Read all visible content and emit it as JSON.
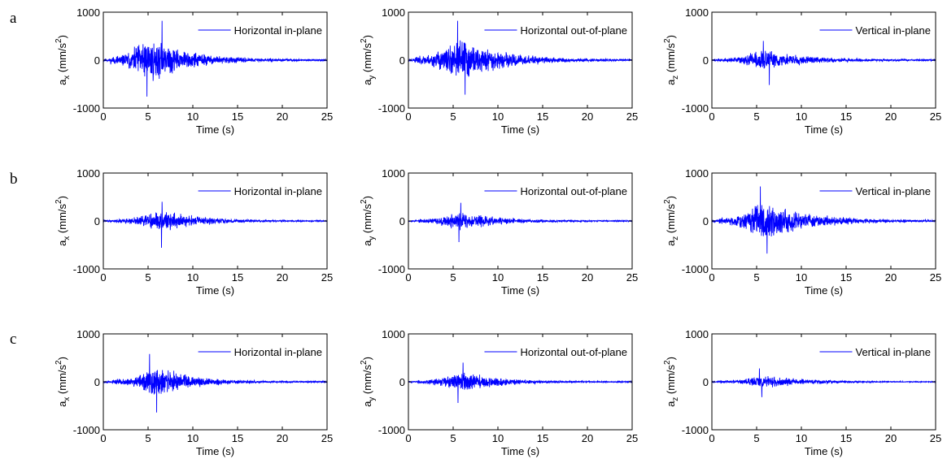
{
  "rows": [
    {
      "label": "a"
    },
    {
      "label": "b"
    },
    {
      "label": "c"
    }
  ],
  "chart_data": [
    {
      "type": "line",
      "row": 0,
      "col": 0,
      "ylabel_base": "a",
      "ylabel_sub": "x",
      "ylabel_unit": " (mm/s",
      "ylabel_exp": "2",
      "ylabel_close": ")",
      "xlabel": "Time (s)",
      "legend": "Horizontal in-plane",
      "xlim": [
        0,
        25
      ],
      "ylim": [
        -1000,
        1000
      ],
      "xticks": [
        0,
        5,
        10,
        15,
        20,
        25
      ],
      "yticks": [
        -1000,
        0,
        1000
      ],
      "envelope": {
        "start": 0.8,
        "peak": 5.0,
        "ramp": 2.0,
        "decay": 4.5,
        "amp": 460,
        "noise": 30,
        "max": 820,
        "min": -760
      },
      "color": "#0000ff",
      "seed": 11
    },
    {
      "type": "line",
      "row": 0,
      "col": 1,
      "ylabel_base": "a",
      "ylabel_sub": "y",
      "ylabel_unit": " (mm/s",
      "ylabel_exp": "2",
      "ylabel_close": ")",
      "xlabel": "Time (s)",
      "legend": "Horizontal out-of-plane",
      "xlim": [
        0,
        25
      ],
      "ylim": [
        -1000,
        1000
      ],
      "xticks": [
        0,
        5,
        10,
        15,
        20,
        25
      ],
      "yticks": [
        -1000,
        0,
        1000
      ],
      "envelope": {
        "start": 0.7,
        "peak": 5.5,
        "ramp": 2.0,
        "decay": 5.0,
        "amp": 420,
        "noise": 30,
        "max": 820,
        "min": -720
      },
      "color": "#0000ff",
      "seed": 23
    },
    {
      "type": "line",
      "row": 0,
      "col": 2,
      "ylabel_base": "a",
      "ylabel_sub": "z",
      "ylabel_unit": " (mm/s",
      "ylabel_exp": "2",
      "ylabel_close": ")",
      "xlabel": "Time (s)",
      "legend": "Vertical in-plane",
      "xlim": [
        0,
        25
      ],
      "ylim": [
        -1000,
        1000
      ],
      "xticks": [
        0,
        5,
        10,
        15,
        20,
        25
      ],
      "yticks": [
        -1000,
        0,
        1000
      ],
      "envelope": {
        "start": 1.0,
        "peak": 5.5,
        "ramp": 2.0,
        "decay": 5.0,
        "amp": 210,
        "noise": 25,
        "max": 400,
        "min": -520
      },
      "color": "#0000ff",
      "seed": 37
    },
    {
      "type": "line",
      "row": 1,
      "col": 0,
      "ylabel_base": "a",
      "ylabel_sub": "x",
      "ylabel_unit": " (mm/s",
      "ylabel_exp": "2",
      "ylabel_close": ")",
      "xlabel": "Time (s)",
      "legend": "Horizontal in-plane",
      "xlim": [
        0,
        25
      ],
      "ylim": [
        -1000,
        1000
      ],
      "xticks": [
        0,
        5,
        10,
        15,
        20,
        25
      ],
      "yticks": [
        -1000,
        0,
        1000
      ],
      "envelope": {
        "start": 1.0,
        "peak": 6.5,
        "ramp": 2.5,
        "decay": 4.5,
        "amp": 210,
        "noise": 20,
        "max": 400,
        "min": -560
      },
      "color": "#0000ff",
      "seed": 41
    },
    {
      "type": "line",
      "row": 1,
      "col": 1,
      "ylabel_base": "a",
      "ylabel_sub": "y",
      "ylabel_unit": " (mm/s",
      "ylabel_exp": "2",
      "ylabel_close": ")",
      "xlabel": "Time (s)",
      "legend": "Horizontal out-of-plane",
      "xlim": [
        0,
        25
      ],
      "ylim": [
        -1000,
        1000
      ],
      "xticks": [
        0,
        5,
        10,
        15,
        20,
        25
      ],
      "yticks": [
        -1000,
        0,
        1000
      ],
      "envelope": {
        "start": 1.0,
        "peak": 5.5,
        "ramp": 2.2,
        "decay": 4.5,
        "amp": 190,
        "noise": 20,
        "max": 380,
        "min": -440
      },
      "color": "#0000ff",
      "seed": 53
    },
    {
      "type": "line",
      "row": 1,
      "col": 2,
      "ylabel_base": "a",
      "ylabel_sub": "z",
      "ylabel_unit": " (mm/s",
      "ylabel_exp": "2",
      "ylabel_close": ")",
      "xlabel": "Time (s)",
      "legend": "Vertical in-plane",
      "xlim": [
        0,
        25
      ],
      "ylim": [
        -1000,
        1000
      ],
      "xticks": [
        0,
        5,
        10,
        15,
        20,
        25
      ],
      "yticks": [
        -1000,
        0,
        1000
      ],
      "envelope": {
        "start": 0.8,
        "peak": 5.5,
        "ramp": 2.0,
        "decay": 5.5,
        "amp": 360,
        "noise": 30,
        "max": 720,
        "min": -680
      },
      "color": "#0000ff",
      "seed": 67
    },
    {
      "type": "line",
      "row": 2,
      "col": 0,
      "ylabel_base": "a",
      "ylabel_sub": "x",
      "ylabel_unit": " (mm/s",
      "ylabel_exp": "2",
      "ylabel_close": ")",
      "xlabel": "Time (s)",
      "legend": "Horizontal in-plane",
      "xlim": [
        0,
        25
      ],
      "ylim": [
        -1000,
        1000
      ],
      "xticks": [
        0,
        5,
        10,
        15,
        20,
        25
      ],
      "yticks": [
        -1000,
        0,
        1000
      ],
      "envelope": {
        "start": 1.0,
        "peak": 6.0,
        "ramp": 2.2,
        "decay": 4.0,
        "amp": 300,
        "noise": 25,
        "max": 580,
        "min": -640
      },
      "color": "#0000ff",
      "seed": 79
    },
    {
      "type": "line",
      "row": 2,
      "col": 1,
      "ylabel_base": "a",
      "ylabel_sub": "y",
      "ylabel_unit": " (mm/s",
      "ylabel_exp": "2",
      "ylabel_close": ")",
      "xlabel": "Time (s)",
      "legend": "Horizontal out-of-plane",
      "xlim": [
        0,
        25
      ],
      "ylim": [
        -1000,
        1000
      ],
      "xticks": [
        0,
        5,
        10,
        15,
        20,
        25
      ],
      "yticks": [
        -1000,
        0,
        1000
      ],
      "envelope": {
        "start": 1.0,
        "peak": 6.0,
        "ramp": 2.3,
        "decay": 4.5,
        "amp": 200,
        "noise": 20,
        "max": 400,
        "min": -440
      },
      "color": "#0000ff",
      "seed": 83
    },
    {
      "type": "line",
      "row": 2,
      "col": 2,
      "ylabel_base": "a",
      "ylabel_sub": "z",
      "ylabel_unit": " (mm/s",
      "ylabel_exp": "2",
      "ylabel_close": ")",
      "xlabel": "Time (s)",
      "legend": "Vertical in-plane",
      "xlim": [
        0,
        25
      ],
      "ylim": [
        -1000,
        1000
      ],
      "xticks": [
        0,
        5,
        10,
        15,
        20,
        25
      ],
      "yticks": [
        -1000,
        0,
        1000
      ],
      "envelope": {
        "start": 1.0,
        "peak": 5.5,
        "ramp": 2.0,
        "decay": 5.0,
        "amp": 130,
        "noise": 15,
        "max": 280,
        "min": -320
      },
      "color": "#0000ff",
      "seed": 97
    }
  ]
}
